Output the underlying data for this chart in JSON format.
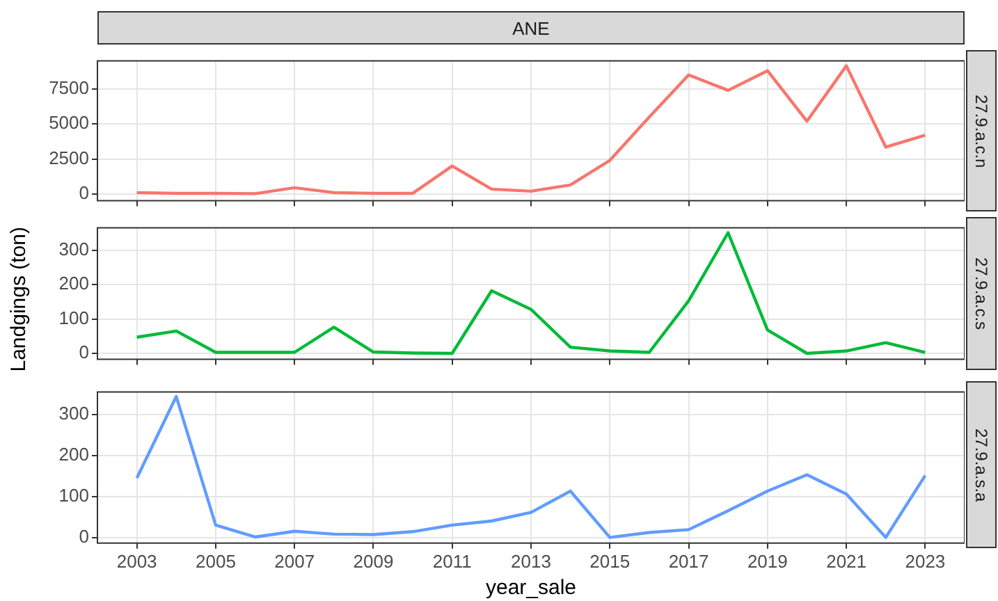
{
  "chart_data": [
    {
      "type": "line",
      "title": "ANE",
      "subtitle": "27.9.a.c.n",
      "x": [
        2003,
        2004,
        2005,
        2006,
        2007,
        2008,
        2009,
        2010,
        2011,
        2012,
        2013,
        2014,
        2015,
        2016,
        2017,
        2018,
        2019,
        2020,
        2021,
        2022,
        2023
      ],
      "series": [
        {
          "color": "#f8766d",
          "values": [
            100,
            50,
            50,
            30,
            450,
            100,
            50,
            50,
            2000,
            350,
            200,
            650,
            2400,
            5500,
            8500,
            7400,
            8800,
            5200,
            9150,
            3350,
            4200
          ]
        }
      ],
      "xlim": [
        2002,
        2024
      ],
      "xticks": [
        2003,
        2005,
        2007,
        2009,
        2011,
        2013,
        2015,
        2017,
        2019,
        2021,
        2023
      ],
      "ylim": [
        -470,
        9500
      ],
      "yticks": [
        0,
        2500,
        5000,
        7500
      ],
      "grid": true,
      "tick_labels": "y",
      "marker": "none",
      "line_style": "solid",
      "legend": false
    },
    {
      "type": "line",
      "subtitle": "27.9.a.c.s",
      "ylabel": "Landgings (ton)",
      "x": [
        2003,
        2004,
        2005,
        2006,
        2007,
        2008,
        2009,
        2010,
        2011,
        2012,
        2013,
        2014,
        2015,
        2016,
        2017,
        2018,
        2019,
        2020,
        2021,
        2022,
        2023
      ],
      "series": [
        {
          "color": "#00ba38",
          "values": [
            47,
            65,
            3,
            3,
            3,
            76,
            4,
            1,
            0,
            182,
            128,
            18,
            7,
            3,
            153,
            351,
            68,
            0,
            7,
            31,
            3
          ]
        }
      ],
      "xlim": [
        2002,
        2024
      ],
      "xticks": [
        2003,
        2005,
        2007,
        2009,
        2011,
        2013,
        2015,
        2017,
        2019,
        2021,
        2023
      ],
      "ylim": [
        -17,
        365
      ],
      "yticks": [
        0,
        100,
        200,
        300
      ],
      "grid": true,
      "tick_labels": "y",
      "marker": "none",
      "line_style": "solid",
      "legend": false
    },
    {
      "type": "line",
      "subtitle": "27.9.a.s.a",
      "xlabel": "year_sale",
      "x": [
        2003,
        2004,
        2005,
        2006,
        2007,
        2008,
        2009,
        2010,
        2011,
        2012,
        2013,
        2014,
        2015,
        2016,
        2017,
        2018,
        2019,
        2020,
        2021,
        2022,
        2023
      ],
      "series": [
        {
          "color": "#619cff",
          "values": [
            145,
            344,
            30,
            1,
            15,
            8,
            7,
            14,
            30,
            40,
            61,
            113,
            0,
            12,
            19,
            65,
            113,
            153,
            106,
            0,
            151
          ]
        }
      ],
      "xlim": [
        2002,
        2024
      ],
      "xticks": [
        2003,
        2005,
        2007,
        2009,
        2011,
        2013,
        2015,
        2017,
        2019,
        2021,
        2023
      ],
      "ylim": [
        -14,
        355
      ],
      "yticks": [
        0,
        100,
        200,
        300
      ],
      "grid": true,
      "marker": "none",
      "line_style": "solid",
      "legend": false
    }
  ]
}
